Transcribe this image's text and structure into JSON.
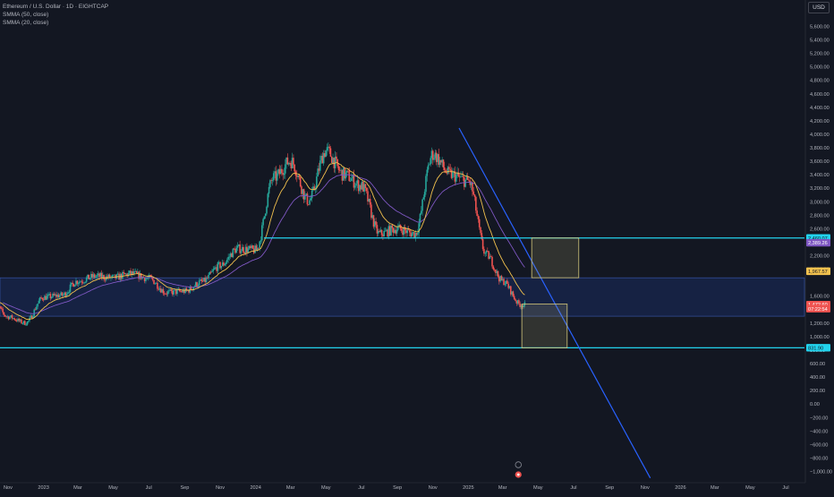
{
  "header": {
    "symbol": "Ethereum / U.S. Dollar · 1D · EIGHTCAP",
    "indicators": [
      "SMMA (50, close)",
      "SMMA (20, close)"
    ],
    "currency": "USD"
  },
  "colors": {
    "background": "#131722",
    "bull": "#26a69a",
    "bear": "#ef5350",
    "smma20": "#f2c14e",
    "smma50": "#7e57c2",
    "zone_line": "#22d3ee",
    "trendline": "#2962ff",
    "zone_fill": "#1a2b5f",
    "target_box": "#d4c77a"
  },
  "chart_data": {
    "type": "candlestick",
    "y_axis": {
      "ticks": [
        5600,
        5400,
        5200,
        5000,
        4800,
        4600,
        4400,
        4200,
        4000,
        3800,
        3600,
        3400,
        3200,
        3000,
        2800,
        2600,
        2200,
        2000,
        1600,
        1200,
        1000,
        800,
        600,
        400,
        200,
        0,
        -200,
        -400,
        -600,
        -800,
        -1000
      ],
      "tick_labels": [
        "5,600.00",
        "5,400.00",
        "5,200.00",
        "5,000.00",
        "4,800.00",
        "4,600.00",
        "4,400.00",
        "4,200.00",
        "4,000.00",
        "3,800.00",
        "3,600.00",
        "3,400.00",
        "3,200.00",
        "3,000.00",
        "2,800.00",
        "2,600.00",
        "2,200.00",
        "2,000.00",
        "1,600.00",
        "1,200.00",
        "1,000.00",
        "800.00",
        "600.00",
        "400.00",
        "200.00",
        "0.00",
        "−200.00",
        "−400.00",
        "−600.00",
        "−800.00",
        "−1,000.00"
      ],
      "range": [
        -1100,
        5900
      ]
    },
    "x_axis": {
      "labels": [
        "Nov",
        "2023",
        "Mar",
        "May",
        "Jul",
        "Sep",
        "Nov",
        "2024",
        "Mar",
        "May",
        "Jul",
        "Sep",
        "Nov",
        "2025",
        "Mar",
        "May",
        "Jul",
        "Sep",
        "Nov",
        "2026",
        "Mar",
        "May",
        "Jul"
      ],
      "dates": [
        "2022-11-01",
        "2023-01-01",
        "2023-03-01",
        "2023-05-01",
        "2023-07-01",
        "2023-09-01",
        "2023-11-01",
        "2024-01-01",
        "2024-03-01",
        "2024-05-01",
        "2024-07-01",
        "2024-09-01",
        "2024-11-01",
        "2025-01-01",
        "2025-03-01",
        "2025-05-01",
        "2025-07-01",
        "2025-09-01",
        "2025-11-01",
        "2026-01-01",
        "2026-03-01",
        "2026-05-01",
        "2026-07-01"
      ]
    },
    "price_series_monthly": {
      "dates": [
        "2022-10-01",
        "2022-11-01",
        "2022-12-01",
        "2023-01-01",
        "2023-02-01",
        "2023-03-01",
        "2023-04-01",
        "2023-05-01",
        "2023-06-01",
        "2023-07-01",
        "2023-08-01",
        "2023-09-01",
        "2023-10-01",
        "2023-11-01",
        "2023-12-01",
        "2024-01-01",
        "2024-02-01",
        "2024-03-01",
        "2024-04-01",
        "2024-05-01",
        "2024-06-01",
        "2024-07-01",
        "2024-08-01",
        "2024-09-01",
        "2024-10-01",
        "2024-11-01",
        "2024-12-01",
        "2025-01-01",
        "2025-02-01",
        "2025-03-01",
        "2025-04-01"
      ],
      "close": [
        1580,
        1290,
        1200,
        1580,
        1610,
        1820,
        1890,
        1870,
        1930,
        1860,
        1650,
        1670,
        1810,
        2050,
        2300,
        2280,
        3350,
        3600,
        3010,
        3750,
        3400,
        3230,
        2520,
        2600,
        2520,
        3700,
        3400,
        3300,
        2210,
        1820,
        1470
      ]
    },
    "levels": [
      {
        "name": "upper-resistance",
        "value": 2460
      },
      {
        "name": "lower-support",
        "value": 831.9
      },
      {
        "name": "zone-top",
        "value": 1870
      },
      {
        "name": "zone-bottom",
        "value": 1300
      }
    ],
    "trendline": {
      "start": {
        "date": "2024-12-16",
        "price": 4090
      },
      "end": {
        "date": "2025-11-10",
        "price": -1100
      }
    },
    "target_boxes": [
      {
        "x0": "2025-04-20",
        "x1": "2025-07-10",
        "y0": 1870,
        "y1": 2460
      },
      {
        "x0": "2025-04-03",
        "x1": "2025-06-20",
        "y0": 830,
        "y1": 1480
      }
    ],
    "price_tags": [
      {
        "label": "2,460.07",
        "value": 2460,
        "color": "#22d3ee",
        "text_color": "#131722"
      },
      {
        "label": "2,389.26",
        "value": 2389,
        "color": "#7e57c2",
        "text_color": "#ffffff"
      },
      {
        "label": "1,967.57",
        "value": 1967,
        "color": "#f2c14e",
        "text_color": "#131722"
      },
      {
        "label": "1,472.60",
        "value": 1472,
        "color": "#ef5350",
        "text_color": "#ffffff"
      },
      {
        "label": "07:22:54",
        "value": 1412,
        "color": "#ef5350",
        "text_color": "#ffffff"
      },
      {
        "label": "831.90",
        "value": 831.9,
        "color": "#22d3ee",
        "text_color": "#131722"
      }
    ]
  }
}
